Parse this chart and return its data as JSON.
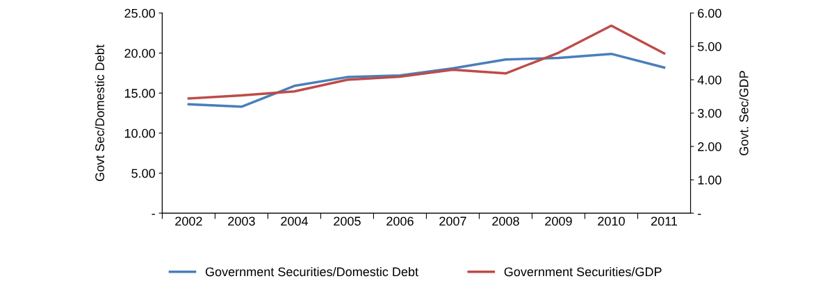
{
  "chart_data": {
    "type": "line",
    "ylabel": "Govt Sec/Domestic Debt",
    "y2label": "Govt. Sec/GDP",
    "categories": [
      "2002",
      "2003",
      "2004",
      "2005",
      "2006",
      "2007",
      "2008",
      "2009",
      "2010",
      "2011"
    ],
    "series": [
      {
        "name": "Government Securities/Domestic Debt",
        "color": "#4a7ebb",
        "values": [
          13.6,
          13.3,
          15.9,
          17.0,
          17.2,
          18.1,
          19.2,
          19.4,
          19.9,
          18.2
        ]
      },
      {
        "name": "Government Securities/GDP",
        "color": "#be4b48",
        "axis": "y2",
        "values": [
          3.44,
          3.53,
          3.65,
          4.0,
          4.09,
          4.3,
          4.19,
          4.81,
          5.62,
          4.79
        ]
      }
    ],
    "ylim": [
      0,
      25
    ],
    "yticks": [
      {
        "value": 0,
        "label": "-"
      },
      {
        "value": 5,
        "label": "5.00"
      },
      {
        "value": 10,
        "label": "10.00"
      },
      {
        "value": 15,
        "label": "15.00"
      },
      {
        "value": 20,
        "label": "20.00"
      },
      {
        "value": 25,
        "label": "25.00"
      }
    ],
    "y2lim": [
      0,
      6
    ],
    "y2ticks": [
      {
        "value": 0,
        "label": "-"
      },
      {
        "value": 1,
        "label": "1.00"
      },
      {
        "value": 2,
        "label": "2.00"
      },
      {
        "value": 3,
        "label": "3.00"
      },
      {
        "value": 4,
        "label": "4.00"
      },
      {
        "value": 5,
        "label": "5.00"
      },
      {
        "value": 6,
        "label": "6.00"
      }
    ],
    "grid": false,
    "legend": "bottom",
    "marker": "none",
    "line_style": "solid"
  }
}
